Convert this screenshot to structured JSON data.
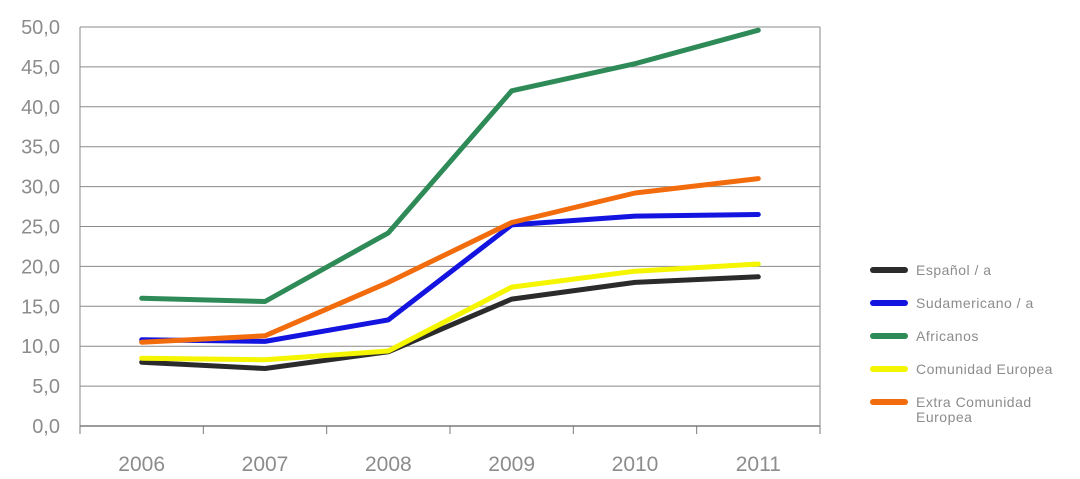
{
  "chart_data": {
    "type": "line",
    "title": "",
    "xlabel": "",
    "ylabel": "",
    "x": [
      "2006",
      "2007",
      "2008",
      "2009",
      "2010",
      "2011"
    ],
    "y_tick_labels": [
      "0,0",
      "5,0",
      "10,0",
      "15,0",
      "20,0",
      "25,0",
      "30,0",
      "35,0",
      "40,0",
      "45,0",
      "50,0"
    ],
    "ylim": [
      0,
      50
    ],
    "grid": true,
    "legend_position": "right",
    "series": [
      {
        "name": "Español / a",
        "color": "#2b2b2b",
        "values": [
          8.0,
          7.2,
          9.3,
          15.9,
          18.0,
          18.7
        ]
      },
      {
        "name": "Sudamericano / a",
        "color": "#1414e0",
        "values": [
          10.8,
          10.6,
          13.3,
          25.2,
          26.3,
          26.5
        ]
      },
      {
        "name": "Africanos",
        "color": "#2e8b57",
        "values": [
          16.0,
          15.6,
          24.2,
          42.0,
          45.4,
          49.6
        ]
      },
      {
        "name": "Comunidad Europea",
        "color": "#f5f500",
        "values": [
          8.5,
          8.3,
          9.4,
          17.4,
          19.4,
          20.3
        ]
      },
      {
        "name": "Extra Comunidad Europea",
        "color": "#f26c0d",
        "values": [
          10.5,
          11.3,
          18.0,
          25.5,
          29.2,
          31.0
        ]
      }
    ]
  }
}
